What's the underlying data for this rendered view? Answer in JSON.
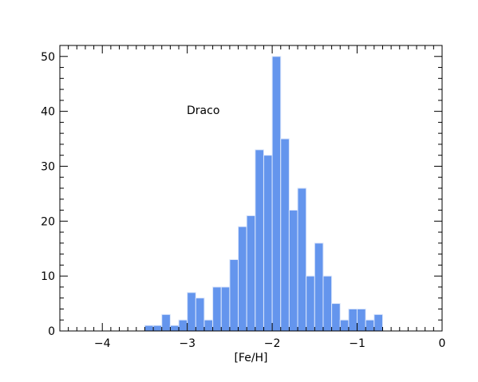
{
  "chart_data": {
    "type": "bar",
    "subtype": "histogram",
    "annotation": "Draco",
    "xlabel": "[Fe/H]",
    "ylabel": "",
    "xlim": [
      -4.5,
      0
    ],
    "ylim": [
      0,
      52
    ],
    "x_ticks": [
      -4,
      -3,
      -2,
      -1,
      0
    ],
    "x_tick_labels": [
      "−4",
      "−3",
      "−2",
      "−1",
      "0"
    ],
    "y_ticks": [
      0,
      10,
      20,
      30,
      40,
      50
    ],
    "y_tick_labels": [
      "0",
      "10",
      "20",
      "30",
      "40",
      "50"
    ],
    "bin_width": 0.1,
    "bin_starts": [
      -3.5,
      -3.4,
      -3.3,
      -3.2,
      -3.1,
      -3.0,
      -2.9,
      -2.8,
      -2.7,
      -2.6,
      -2.5,
      -2.4,
      -2.3,
      -2.2,
      -2.1,
      -2.0,
      -1.9,
      -1.8,
      -1.7,
      -1.6,
      -1.5,
      -1.4,
      -1.3,
      -1.2,
      -1.1,
      -1.0,
      -0.9,
      -0.8
    ],
    "values": [
      1,
      1,
      3,
      1,
      2,
      7,
      6,
      2,
      8,
      8,
      13,
      19,
      21,
      33,
      32,
      50,
      35,
      22,
      26,
      10,
      16,
      10,
      5,
      2,
      4,
      4,
      2,
      3
    ],
    "bar_color": "#6495ED",
    "bar_edge_color": "#dbe6fb",
    "grid": false
  }
}
